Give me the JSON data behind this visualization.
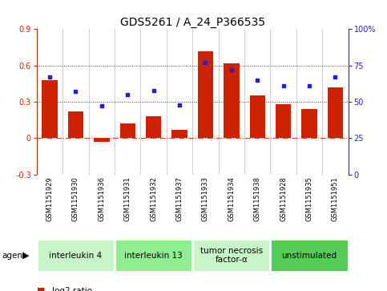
{
  "title": "GDS5261 / A_24_P366535",
  "samples": [
    "GSM1151929",
    "GSM1151930",
    "GSM1151936",
    "GSM1151931",
    "GSM1151932",
    "GSM1151937",
    "GSM1151933",
    "GSM1151934",
    "GSM1151938",
    "GSM1151928",
    "GSM1151935",
    "GSM1151951"
  ],
  "log2_ratio": [
    0.48,
    0.22,
    -0.03,
    0.12,
    0.18,
    0.07,
    0.72,
    0.62,
    0.35,
    0.28,
    0.24,
    0.42
  ],
  "percentile_rank": [
    67,
    57,
    47,
    55,
    58,
    48,
    77,
    72,
    65,
    61,
    61,
    67
  ],
  "agents": [
    {
      "label": "interleukin 4",
      "start": 0,
      "end": 3,
      "color": "#c8f5c8"
    },
    {
      "label": "interleukin 13",
      "start": 3,
      "end": 6,
      "color": "#90ee90"
    },
    {
      "label": "tumor necrosis\nfactor-α",
      "start": 6,
      "end": 9,
      "color": "#c8f5c8"
    },
    {
      "label": "unstimulated",
      "start": 9,
      "end": 12,
      "color": "#55cc55"
    }
  ],
  "ylim_left": [
    -0.3,
    0.9
  ],
  "ylim_right": [
    0,
    100
  ],
  "yticks_left": [
    -0.3,
    0.0,
    0.3,
    0.6,
    0.9
  ],
  "yticks_right": [
    0,
    25,
    50,
    75,
    100
  ],
  "ytick_labels_right": [
    "0",
    "25",
    "50",
    "75",
    "100%"
  ],
  "hlines": [
    0.3,
    0.6
  ],
  "bar_color": "#cc2200",
  "point_color": "#2222cc",
  "zero_line_color": "#cc4422",
  "bg_color": "#ffffff",
  "sample_bg": "#c8c8c8",
  "bar_width": 0.6,
  "title_fontsize": 10,
  "tick_fontsize": 7,
  "sample_fontsize": 6,
  "agent_label_fontsize": 7.5,
  "legend_fontsize": 7.5
}
